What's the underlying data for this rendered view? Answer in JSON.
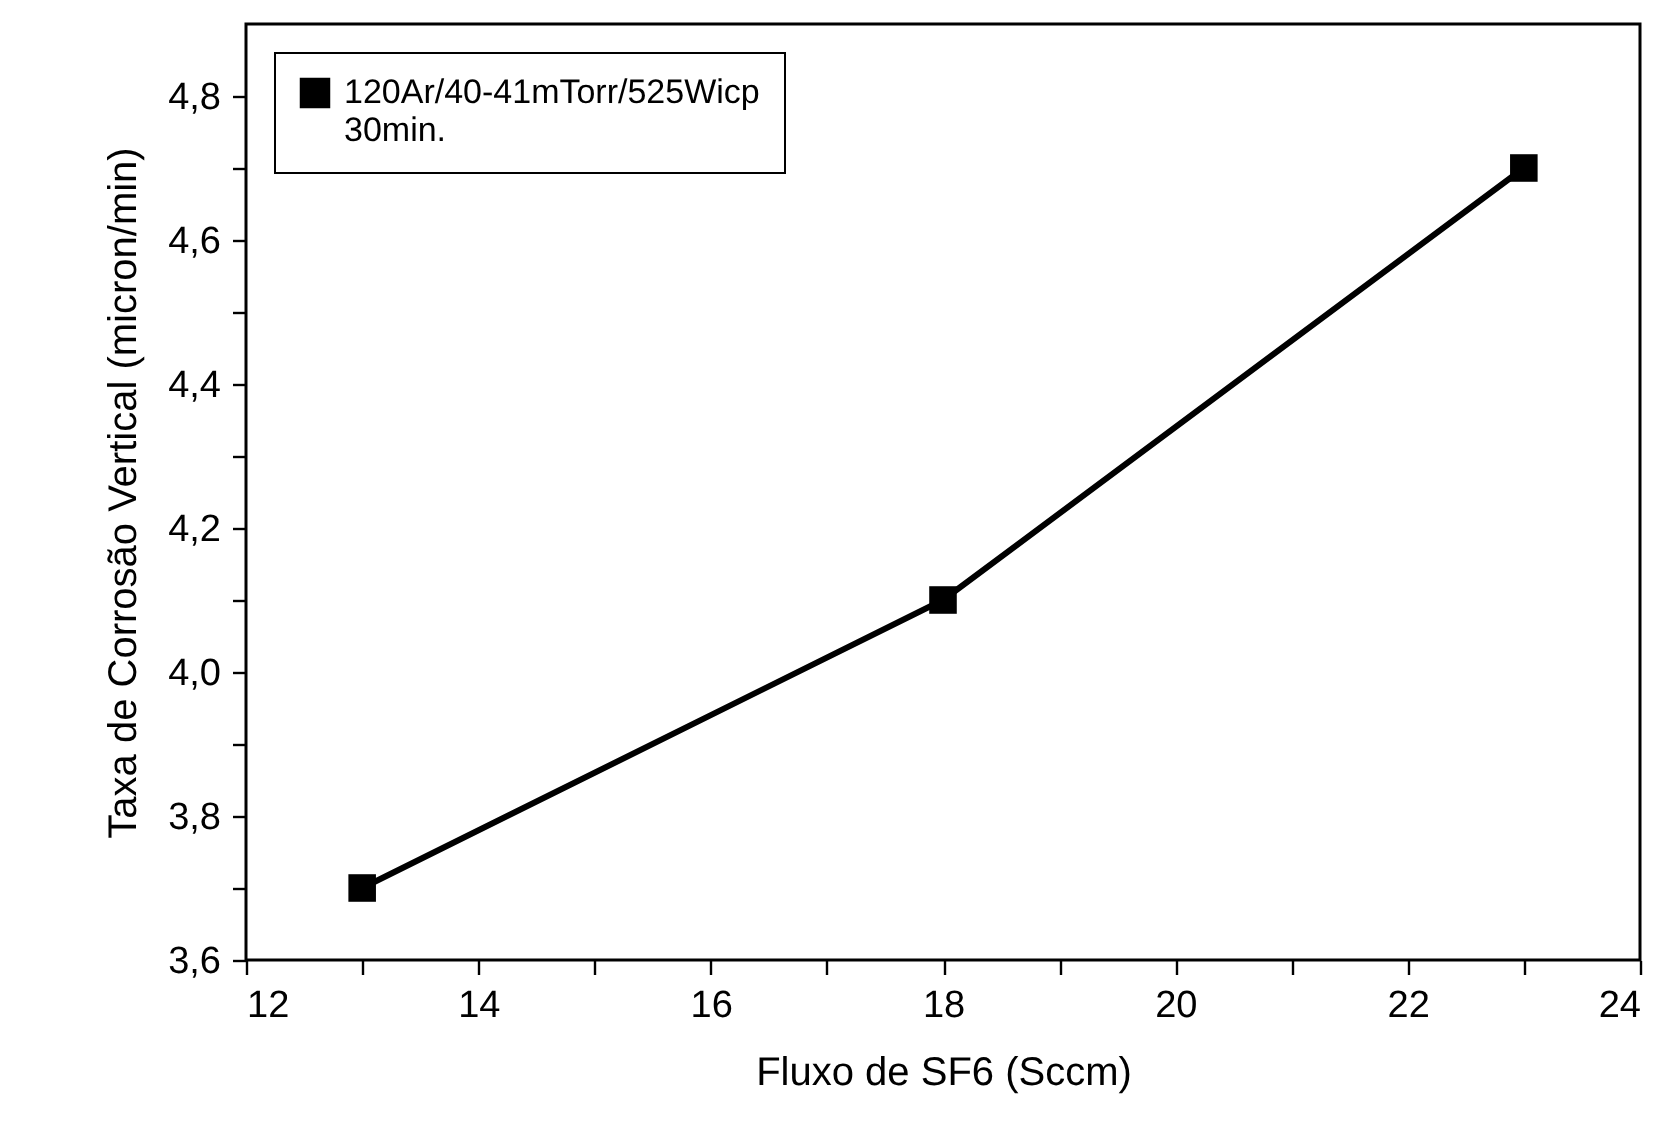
{
  "chart_data": {
    "type": "line",
    "xlabel": "Fluxo de SF6 (Sccm)",
    "ylabel": "Taxa de Corrosão Vertical (micron/min)",
    "x": [
      13,
      18,
      23
    ],
    "series": [
      {
        "name": "120Ar/40-41mTorr/525Wicp\n30min.",
        "color": "#000000",
        "values": [
          3.7,
          4.1,
          4.7
        ]
      }
    ],
    "xlim": [
      12,
      24
    ],
    "xticks": [
      12,
      {
        "value": 13,
        "label": null
      },
      14,
      {
        "value": 15,
        "label": null
      },
      16,
      {
        "value": 17,
        "label": null
      },
      18,
      {
        "value": 19,
        "label": null
      },
      20,
      {
        "value": 21,
        "label": null
      },
      22,
      {
        "value": 23,
        "label": null
      },
      24
    ],
    "ylim": [
      3.6,
      4.9
    ],
    "yticks": [
      {
        "value": 3.6,
        "label": "3,6"
      },
      {
        "value": 3.7,
        "label": null
      },
      {
        "value": 3.8,
        "label": "3,8"
      },
      {
        "value": 3.9,
        "label": null
      },
      {
        "value": 4.0,
        "label": "4,0"
      },
      {
        "value": 4.1,
        "label": null
      },
      {
        "value": 4.2,
        "label": "4,2"
      },
      {
        "value": 4.3,
        "label": null
      },
      {
        "value": 4.4,
        "label": "4,4"
      },
      {
        "value": 4.5,
        "label": null
      },
      {
        "value": 4.6,
        "label": "4,6"
      },
      {
        "value": 4.7,
        "label": null
      },
      {
        "value": 4.8,
        "label": "4,8"
      }
    ],
    "grid": false,
    "legend": "top left",
    "marker": "square",
    "line_style": "solid"
  }
}
